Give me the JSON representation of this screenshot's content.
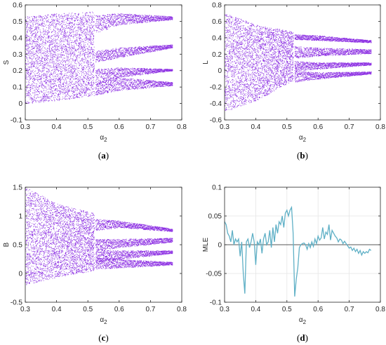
{
  "colors": {
    "bifurcation": "#8a2be2",
    "mle_line": "#5fb0c6",
    "axis": "#262626",
    "grid": "#e5e5e5"
  },
  "chart_data": [
    {
      "id": "a",
      "type": "scatter",
      "sub_label": "a",
      "xlabel_symbol": "α",
      "xlabel_sub": "2",
      "ylabel": "S",
      "xlim": [
        0.3,
        0.8
      ],
      "ylim": [
        -0.1,
        0.6
      ],
      "xticks": [
        0.3,
        0.4,
        0.5,
        0.6,
        0.7,
        0.8
      ],
      "yticks": [
        -0.1,
        0,
        0.1,
        0.2,
        0.3,
        0.4,
        0.5,
        0.6
      ],
      "ytick_labels": [
        "-0.1",
        "0",
        "0.1",
        "0.2",
        "0.3",
        "0.4",
        "0.5",
        "0.6"
      ],
      "grid": false,
      "chaotic_band": [
        [
          0.3,
          0.0,
          0.53
        ],
        [
          0.41,
          0.02,
          0.55
        ],
        [
          0.52,
          0.05,
          0.56
        ]
      ],
      "periodic_branches_start": 0.525,
      "periodic_branches": [
        [
          [
            0.525,
            0.43,
            0.54
          ],
          [
            0.6,
            0.48,
            0.55
          ],
          [
            0.77,
            0.51,
            0.53
          ]
        ],
        [
          [
            0.525,
            0.25,
            0.32
          ],
          [
            0.6,
            0.28,
            0.34
          ],
          [
            0.77,
            0.34,
            0.36
          ]
        ],
        [
          [
            0.525,
            0.11,
            0.21
          ],
          [
            0.6,
            0.16,
            0.22
          ],
          [
            0.77,
            0.2,
            0.21
          ]
        ],
        [
          [
            0.525,
            0.05,
            0.13
          ],
          [
            0.6,
            0.08,
            0.16
          ],
          [
            0.77,
            0.11,
            0.13
          ]
        ]
      ],
      "x_end": 0.77
    },
    {
      "id": "b",
      "type": "scatter",
      "sub_label": "b",
      "xlabel_symbol": "α",
      "xlabel_sub": "2",
      "ylabel": "L",
      "xlim": [
        0.3,
        0.8
      ],
      "ylim": [
        -0.6,
        0.8
      ],
      "xticks": [
        0.3,
        0.4,
        0.5,
        0.6,
        0.7,
        0.8
      ],
      "yticks": [
        -0.6,
        -0.4,
        -0.2,
        0,
        0.2,
        0.4,
        0.6,
        0.8
      ],
      "ytick_labels": [
        "-0.6",
        "-0.4",
        "-0.2",
        "0",
        "0.2",
        "0.4",
        "0.6",
        "0.8"
      ],
      "grid": false,
      "chaotic_band": [
        [
          0.3,
          -0.5,
          0.7
        ],
        [
          0.41,
          -0.35,
          0.55
        ],
        [
          0.52,
          -0.12,
          0.48
        ]
      ],
      "periodic_branches_start": 0.525,
      "periodic_branches": [
        [
          [
            0.525,
            0.38,
            0.44
          ],
          [
            0.6,
            0.37,
            0.43
          ],
          [
            0.77,
            0.34,
            0.37
          ]
        ],
        [
          [
            0.525,
            0.15,
            0.3
          ],
          [
            0.6,
            0.18,
            0.28
          ],
          [
            0.77,
            0.21,
            0.26
          ]
        ],
        [
          [
            0.525,
            0.0,
            0.12
          ],
          [
            0.6,
            0.02,
            0.1
          ],
          [
            0.77,
            0.07,
            0.1
          ]
        ],
        [
          [
            0.525,
            -0.14,
            0.0
          ],
          [
            0.6,
            -0.1,
            -0.02
          ],
          [
            0.77,
            -0.04,
            -0.01
          ]
        ]
      ],
      "x_end": 0.77
    },
    {
      "id": "c",
      "type": "scatter",
      "sub_label": "c",
      "xlabel_symbol": "α",
      "xlabel_sub": "2",
      "ylabel": "B",
      "xlim": [
        0.3,
        0.8
      ],
      "ylim": [
        -0.5,
        1.5
      ],
      "xticks": [
        0.3,
        0.4,
        0.5,
        0.6,
        0.7,
        0.8
      ],
      "yticks": [
        -0.5,
        0,
        0.5,
        1,
        1.5
      ],
      "ytick_labels": [
        "-0.5",
        "0",
        "0.5",
        "1",
        "1.5"
      ],
      "grid": false,
      "chaotic_band": [
        [
          0.3,
          -0.2,
          1.5
        ],
        [
          0.41,
          -0.05,
          1.2
        ],
        [
          0.52,
          0.05,
          1.05
        ]
      ],
      "periodic_branches_start": 0.525,
      "periodic_branches": [
        [
          [
            0.525,
            0.75,
            0.95
          ],
          [
            0.6,
            0.8,
            0.92
          ],
          [
            0.77,
            0.73,
            0.78
          ]
        ],
        [
          [
            0.525,
            0.4,
            0.6
          ],
          [
            0.6,
            0.45,
            0.6
          ],
          [
            0.77,
            0.55,
            0.62
          ]
        ],
        [
          [
            0.525,
            0.2,
            0.42
          ],
          [
            0.6,
            0.25,
            0.4
          ],
          [
            0.77,
            0.35,
            0.4
          ]
        ],
        [
          [
            0.525,
            0.08,
            0.28
          ],
          [
            0.6,
            0.1,
            0.25
          ],
          [
            0.77,
            0.15,
            0.2
          ]
        ]
      ],
      "x_end": 0.77
    },
    {
      "id": "d",
      "type": "line",
      "sub_label": "d",
      "xlabel_symbol": "α",
      "xlabel_sub": "2",
      "ylabel": "MLE",
      "xlim": [
        0.3,
        0.8
      ],
      "ylim": [
        -0.1,
        0.1
      ],
      "xticks": [
        0.3,
        0.4,
        0.5,
        0.6,
        0.7,
        0.8
      ],
      "yticks": [
        -0.1,
        -0.05,
        0,
        0.05,
        0.1
      ],
      "ytick_labels": [
        "-0.1",
        "-0.05",
        "0",
        "0.05",
        "0.1"
      ],
      "grid": true,
      "zero_line": true,
      "x": [
        0.3,
        0.305,
        0.31,
        0.315,
        0.32,
        0.325,
        0.33,
        0.335,
        0.34,
        0.345,
        0.35,
        0.355,
        0.36,
        0.365,
        0.37,
        0.375,
        0.38,
        0.385,
        0.39,
        0.395,
        0.4,
        0.405,
        0.41,
        0.415,
        0.42,
        0.425,
        0.43,
        0.435,
        0.44,
        0.445,
        0.45,
        0.455,
        0.46,
        0.465,
        0.47,
        0.475,
        0.48,
        0.485,
        0.49,
        0.495,
        0.5,
        0.505,
        0.51,
        0.515,
        0.52,
        0.525,
        0.53,
        0.535,
        0.54,
        0.545,
        0.55,
        0.555,
        0.56,
        0.565,
        0.57,
        0.575,
        0.58,
        0.585,
        0.59,
        0.595,
        0.6,
        0.605,
        0.61,
        0.615,
        0.62,
        0.625,
        0.63,
        0.635,
        0.64,
        0.645,
        0.65,
        0.655,
        0.66,
        0.665,
        0.67,
        0.675,
        0.68,
        0.685,
        0.69,
        0.695,
        0.7,
        0.705,
        0.71,
        0.715,
        0.72,
        0.725,
        0.73,
        0.735,
        0.74,
        0.745,
        0.75,
        0.755,
        0.76,
        0.765,
        0.77
      ],
      "y": [
        0.04,
        0.035,
        0.02,
        0.015,
        0.005,
        0.025,
        0.0,
        0.01,
        0.005,
        0.01,
        -0.02,
        0.005,
        -0.05,
        -0.085,
        0.005,
        0.01,
        -0.005,
        0.005,
        0.02,
        0.005,
        -0.035,
        0.005,
        0.0,
        0.01,
        -0.015,
        0.01,
        0.02,
        0.0,
        0.005,
        0.025,
        -0.005,
        0.03,
        0.005,
        0.035,
        0.02,
        0.04,
        0.035,
        0.05,
        0.03,
        0.055,
        0.06,
        0.05,
        0.06,
        0.065,
        0.02,
        -0.09,
        -0.06,
        -0.04,
        -0.005,
        0.0,
        0.002,
        0.003,
        0.0,
        -0.008,
        0.002,
        -0.005,
        0.005,
        -0.003,
        0.01,
        0.002,
        0.015,
        0.008,
        0.012,
        0.03,
        0.01,
        0.022,
        0.018,
        0.035,
        0.008,
        0.025,
        0.02,
        0.015,
        0.012,
        0.005,
        0.01,
        0.008,
        0.002,
        0.006,
        0.002,
        -0.002,
        -0.006,
        -0.004,
        -0.01,
        -0.006,
        -0.012,
        -0.008,
        -0.015,
        -0.01,
        -0.018,
        -0.012,
        -0.015,
        -0.012,
        -0.014,
        -0.008,
        -0.01
      ]
    }
  ]
}
